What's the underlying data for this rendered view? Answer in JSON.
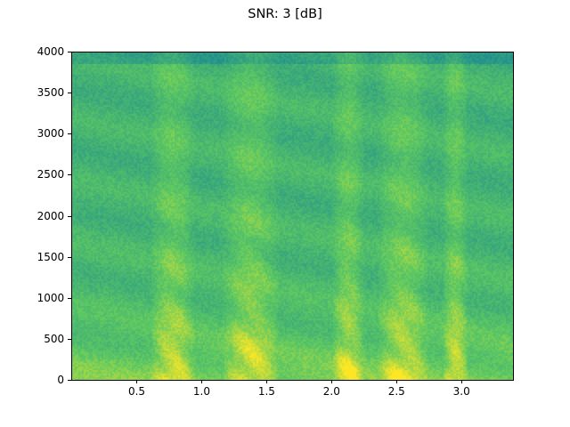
{
  "chart_data": {
    "type": "heatmap",
    "title": "SNR: 3 [dB]",
    "xlabel": "",
    "ylabel": "",
    "xlim": [
      0,
      3.4
    ],
    "ylim": [
      0,
      4000
    ],
    "x_ticks": [
      0.5,
      1.0,
      1.5,
      2.0,
      2.5,
      3.0
    ],
    "x_tick_labels": [
      "0.5",
      "1.0",
      "1.5",
      "2.0",
      "2.5",
      "3.0"
    ],
    "y_ticks": [
      0,
      500,
      1000,
      1500,
      2000,
      2500,
      3000,
      3500,
      4000
    ],
    "y_tick_labels": [
      "0",
      "500",
      "1000",
      "1500",
      "2000",
      "2500",
      "3000",
      "3500",
      "4000"
    ],
    "colormap": "viridis",
    "grid": false,
    "high_energy_time_regions": [
      [
        0.6,
        0.95
      ],
      [
        1.15,
        1.6
      ],
      [
        2.0,
        2.25
      ],
      [
        2.35,
        2.75
      ],
      [
        2.85,
        3.05
      ]
    ],
    "colors": {
      "low": "#2c728e",
      "mid": "#22a884",
      "high": "#fde725"
    }
  }
}
